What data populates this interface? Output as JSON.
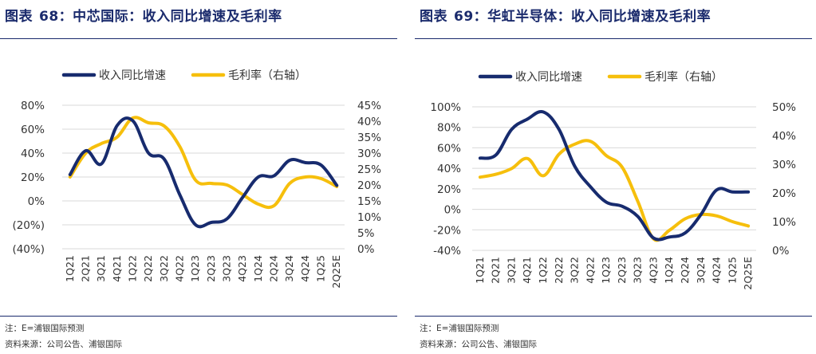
{
  "colors": {
    "title": "#1a2a6c",
    "revenue_line": "#172b6e",
    "margin_line": "#f6bf0c",
    "grid": "#d9d9d9"
  },
  "left": {
    "title_prefix": "图表",
    "title_number": "68",
    "title_text": "：中芯国际：收入同比增速及毛利率",
    "note": "注：E=浦银国际预测",
    "source": "资料来源：公司公告、浦银国际"
  },
  "right": {
    "title_prefix": "图表",
    "title_number": "69",
    "title_text": "：华虹半导体：收入同比增速及毛利率",
    "note": "注：E=浦银国际预测",
    "source": "资料来源：公司公告、浦银国际"
  },
  "chart_data": [
    {
      "type": "line",
      "categories": [
        "1Q21",
        "2Q21",
        "3Q21",
        "4Q21",
        "1Q22",
        "2Q22",
        "3Q22",
        "4Q22",
        "1Q23",
        "2Q23",
        "3Q23",
        "4Q23",
        "1Q24",
        "2Q24",
        "3Q24",
        "4Q24",
        "1Q25",
        "2Q25E"
      ],
      "series": [
        {
          "name": "收入同比增速",
          "axis": "left",
          "values": [
            22,
            42,
            31,
            63,
            67,
            40,
            35,
            5,
            -20,
            -18,
            -15,
            3,
            20,
            21,
            34,
            32,
            30,
            13
          ]
        },
        {
          "name": "毛利率（右轴）",
          "axis": "right",
          "values": [
            22.5,
            30,
            33,
            35,
            41,
            39.5,
            38.5,
            32,
            21.5,
            20.5,
            20,
            17,
            14,
            13.5,
            20.5,
            22.5,
            22,
            19.5
          ]
        }
      ],
      "yticks_left": [
        "80%",
        "60%",
        "40%",
        "20%",
        "0%",
        "(20%)",
        "(40%)"
      ],
      "ylim_left": [
        -40,
        80
      ],
      "yticks_right": [
        "45%",
        "40%",
        "35%",
        "30%",
        "25%",
        "20%",
        "15%",
        "10%",
        "5%",
        "0%"
      ],
      "ylim_right": [
        0,
        45
      ],
      "legend_position": "top",
      "grid": true
    },
    {
      "type": "line",
      "categories": [
        "1Q21",
        "2Q21",
        "3Q21",
        "4Q21",
        "1Q22",
        "2Q22",
        "3Q22",
        "4Q22",
        "1Q23",
        "2Q23",
        "3Q23",
        "4Q23",
        "1Q24",
        "2Q24",
        "3Q24",
        "4Q24",
        "1Q25",
        "2Q25E"
      ],
      "series": [
        {
          "name": "收入同比增速",
          "axis": "left",
          "values": [
            50,
            53,
            78,
            88,
            95,
            78,
            42,
            22,
            7,
            3,
            -7,
            -28,
            -27,
            -23,
            -5,
            19,
            17,
            17
          ]
        },
        {
          "name": "毛利率（右轴）",
          "axis": "right",
          "values": [
            25.5,
            26.5,
            28.5,
            32,
            26,
            33.5,
            37,
            38,
            33,
            29,
            17,
            4,
            7,
            11,
            12.5,
            12,
            10,
            8.5
          ]
        }
      ],
      "yticks_left": [
        "100%",
        "80%",
        "60%",
        "40%",
        "20%",
        "0%",
        "-20%",
        "-40%"
      ],
      "ylim_left": [
        -40,
        100
      ],
      "yticks_right": [
        "50%",
        "40%",
        "30%",
        "20%",
        "10%",
        "0%"
      ],
      "ylim_right": [
        0,
        50
      ],
      "legend_position": "top",
      "grid": true
    }
  ]
}
